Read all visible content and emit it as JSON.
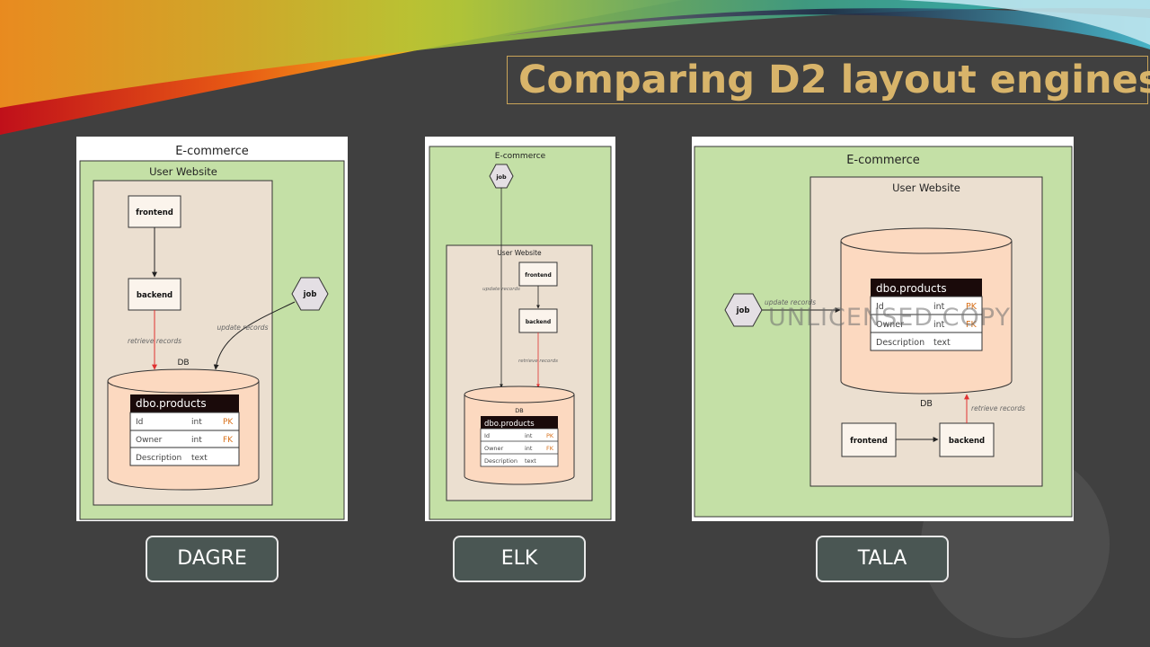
{
  "slide": {
    "title": "Comparing D2 layout engines",
    "watermark": "UNLICENSED COPY",
    "colors": {
      "background": "#404040",
      "title": "#d8b46a",
      "container_green": "#c4e0a6",
      "container_tan": "#ebdfd0",
      "db_fill": "#fcd9c0",
      "edge_red": "#e03030"
    }
  },
  "labels": [
    "DAGRE",
    "ELK",
    "TALA"
  ],
  "diagram": {
    "root": "E-commerce",
    "container": "User Website",
    "nodes": {
      "frontend": "frontend",
      "backend": "backend",
      "job": "job",
      "db": "DB"
    },
    "edges": {
      "retrieve": "retrieve records",
      "update": "update records"
    },
    "table": {
      "name": "dbo.products",
      "rows": [
        {
          "name": "Id",
          "type": "int",
          "key": "PK"
        },
        {
          "name": "Owner",
          "type": "int",
          "key": "FK"
        },
        {
          "name": "Description",
          "type": "text",
          "key": ""
        }
      ]
    }
  }
}
